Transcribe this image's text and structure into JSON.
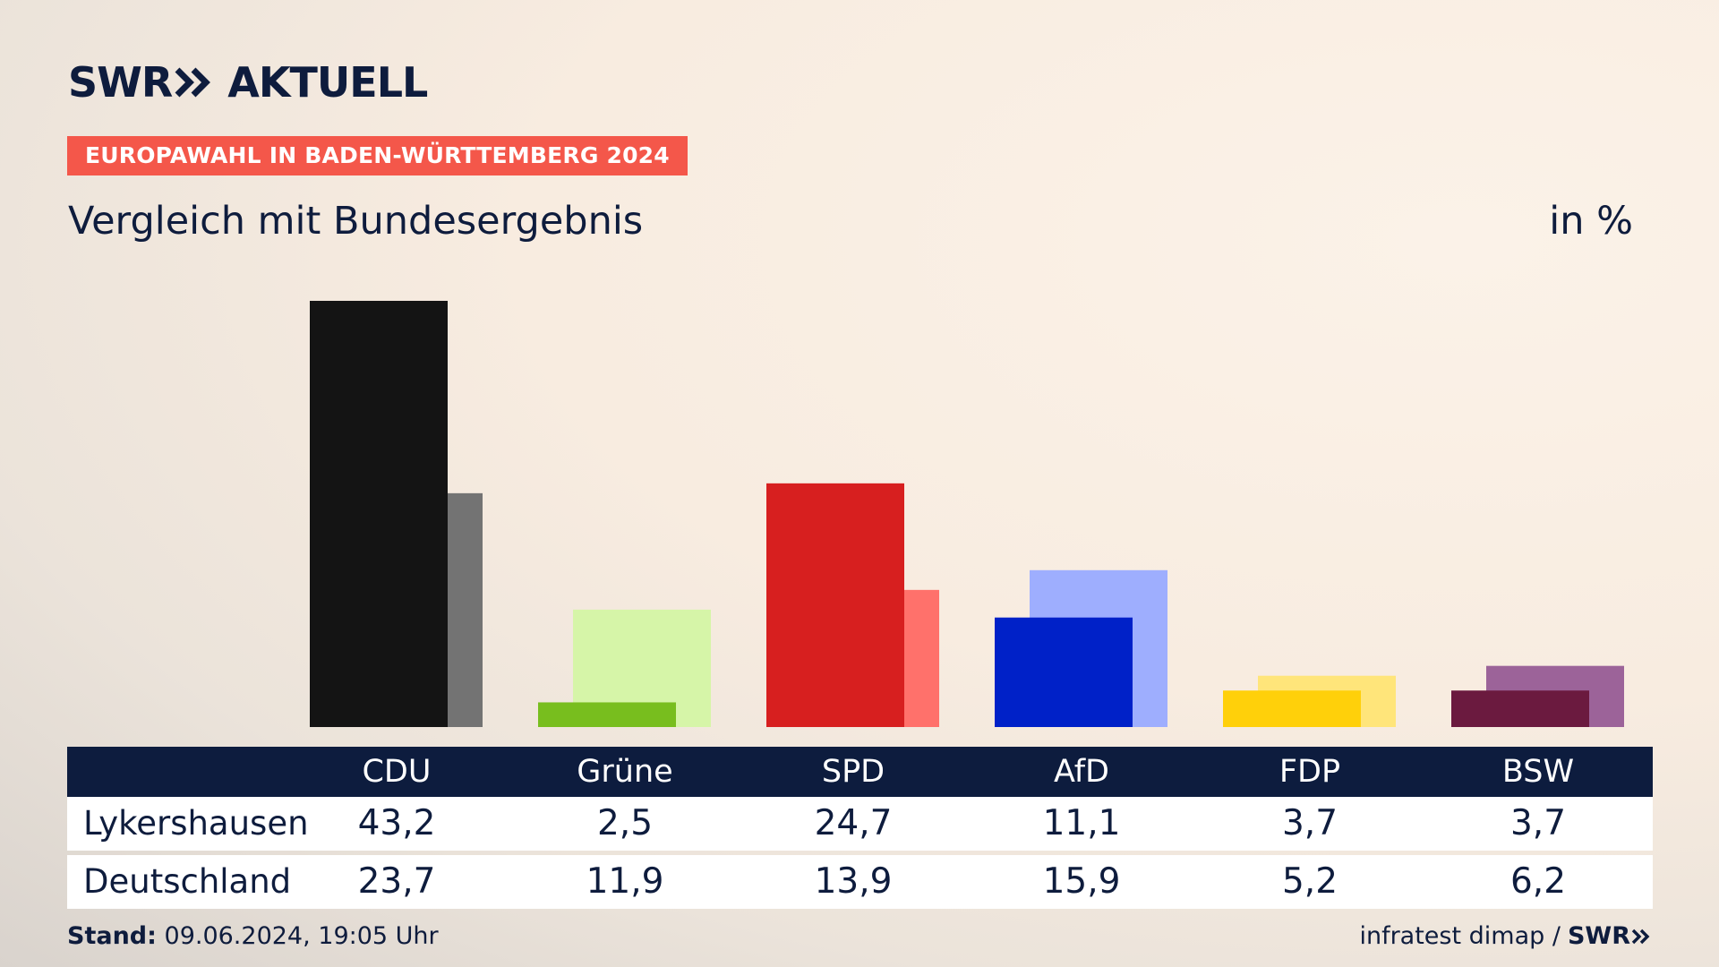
{
  "brand": {
    "logo_prefix": "SWR",
    "logo_suffix": "AKTUELL"
  },
  "badge": "EUROPAWAHL IN BADEN-WÜRTTEMBERG 2024",
  "subtitle": "Vergleich mit Bundesergebnis",
  "unit": "in %",
  "colors": {
    "navy": "#0d1c3e",
    "badge": "#f4574a"
  },
  "chart_data": {
    "type": "bar",
    "categories": [
      "CDU",
      "Grüne",
      "SPD",
      "AfD",
      "FDP",
      "BSW"
    ],
    "series": [
      {
        "name": "Lykershausen",
        "values": [
          43.2,
          2.5,
          24.7,
          11.1,
          3.7,
          3.7
        ],
        "colors": [
          "#141414",
          "#78be1e",
          "#d71f1f",
          "#0021c8",
          "#ffd00a",
          "#6b1a3f"
        ]
      },
      {
        "name": "Deutschland",
        "values": [
          23.7,
          11.9,
          13.9,
          15.9,
          5.2,
          6.2
        ],
        "colors": [
          "#737373",
          "#d6f5a8",
          "#ff716b",
          "#9eaefe",
          "#ffe57a",
          "#9c6399"
        ]
      }
    ],
    "ylim": [
      0,
      45
    ],
    "grid": false,
    "legend": "table-below"
  },
  "table": {
    "headers": [
      "CDU",
      "Grüne",
      "SPD",
      "AfD",
      "FDP",
      "BSW"
    ],
    "rows": [
      {
        "label": "Lykershausen",
        "values": [
          "43,2",
          "2,5",
          "24,7",
          "11,1",
          "3,7",
          "3,7"
        ]
      },
      {
        "label": "Deutschland",
        "values": [
          "23,7",
          "11,9",
          "13,9",
          "15,9",
          "5,2",
          "6,2"
        ]
      }
    ]
  },
  "footer": {
    "stand_label": "Stand:",
    "stand_value": "09.06.2024, 19:05 Uhr",
    "source": "infratest dimap /",
    "source_logo": "SWR"
  }
}
